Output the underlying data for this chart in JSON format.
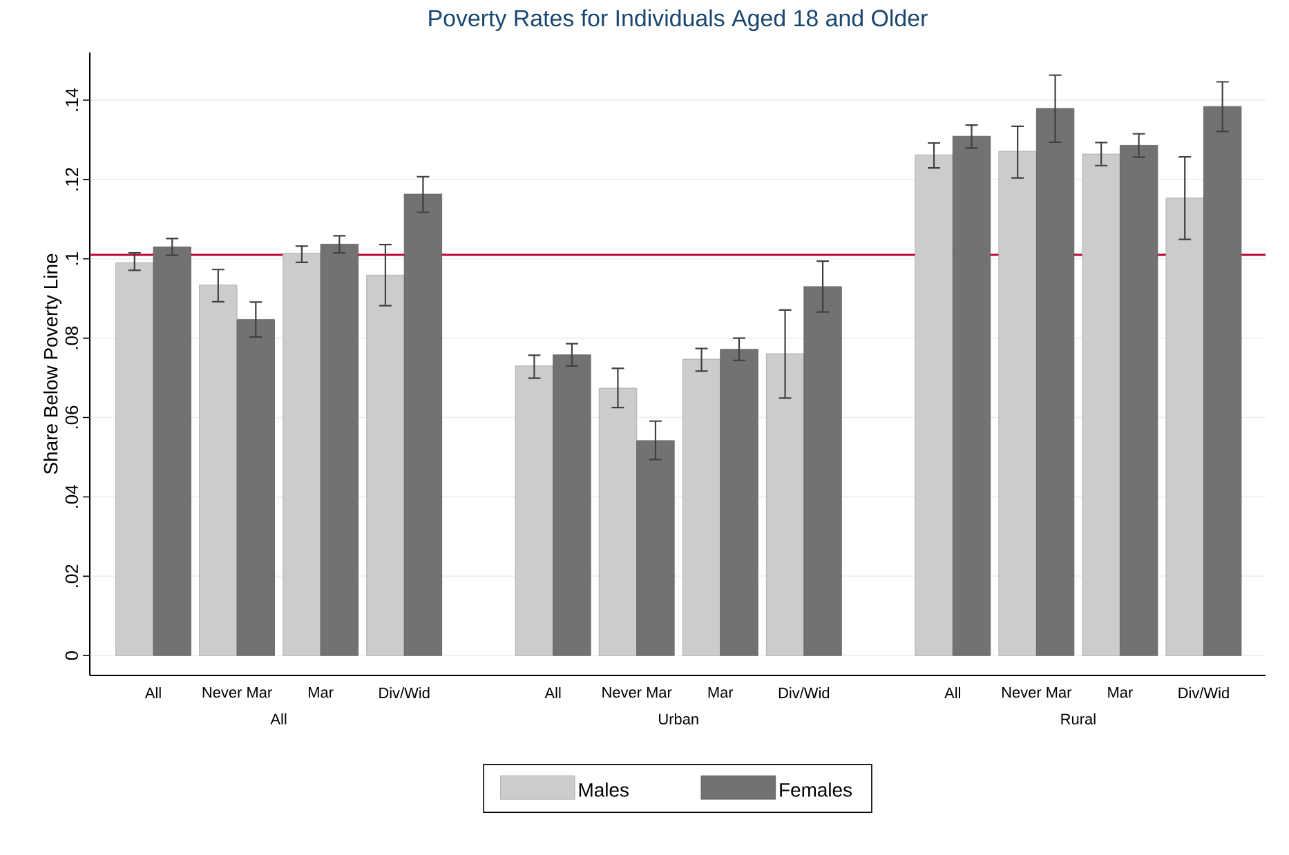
{
  "chart_data": {
    "type": "bar",
    "title": "Poverty Rates for Individuals Aged 18 and Older",
    "ylabel": "Share Below Poverty Line",
    "categories": [
      "All",
      "Never Mar",
      "Mar",
      "Div/Wid",
      "All",
      "Never Mar",
      "Mar",
      "Div/Wid",
      "All",
      "Never Mar",
      "Mar",
      "Div/Wid"
    ],
    "annotations": [
      "All",
      "Urban",
      "Rural"
    ],
    "series": [
      {
        "name": "Males",
        "color": "#cccccc",
        "values": [
          0.099,
          0.0934,
          0.1014,
          0.0959,
          0.073,
          0.0674,
          0.0747,
          0.0761,
          0.1262,
          0.1271,
          0.1264,
          0.1153
        ],
        "errors": [
          [
            0.0971,
            0.1015
          ],
          [
            0.0892,
            0.0973
          ],
          [
            0.0991,
            0.1032
          ],
          [
            0.0882,
            0.1036
          ],
          [
            0.0699,
            0.0757
          ],
          [
            0.0625,
            0.0724
          ],
          [
            0.0717,
            0.0774
          ],
          [
            0.0649,
            0.0871
          ],
          [
            0.1229,
            0.1292
          ],
          [
            0.1204,
            0.1334
          ],
          [
            0.1235,
            0.1293
          ],
          [
            0.1049,
            0.1257
          ]
        ]
      },
      {
        "name": "Females",
        "color": "#727272",
        "values": [
          0.103,
          0.0847,
          0.1037,
          0.1163,
          0.0758,
          0.0542,
          0.0772,
          0.093,
          0.1309,
          0.1379,
          0.1286,
          0.1384
        ],
        "errors": [
          [
            0.1009,
            0.1051
          ],
          [
            0.0803,
            0.0891
          ],
          [
            0.1015,
            0.1058
          ],
          [
            0.1117,
            0.1207
          ],
          [
            0.073,
            0.0786
          ],
          [
            0.0494,
            0.0591
          ],
          [
            0.0744,
            0.08
          ],
          [
            0.0866,
            0.0994
          ],
          [
            0.1279,
            0.1337
          ],
          [
            0.1294,
            0.1463
          ],
          [
            0.1256,
            0.1315
          ],
          [
            0.1321,
            0.1446
          ]
        ]
      }
    ],
    "ylim": [
      -0.005,
      0.152
    ],
    "yticks": [
      0,
      {
        "value": 0.02,
        "label": ".02"
      },
      {
        "value": 0.04,
        "label": ".04"
      },
      {
        "value": 0.06,
        "label": ".06"
      },
      {
        "value": 0.08,
        "label": ".08"
      },
      {
        "value": 0.1,
        "label": ".1"
      },
      {
        "value": 0.12,
        "label": ".12"
      },
      {
        "value": 0.14,
        "label": ".14"
      }
    ],
    "ref_lines": [
      {
        "axis": "y",
        "value": 0.101,
        "color": "#c10534"
      }
    ],
    "grid": "y",
    "legend": "bottom"
  }
}
